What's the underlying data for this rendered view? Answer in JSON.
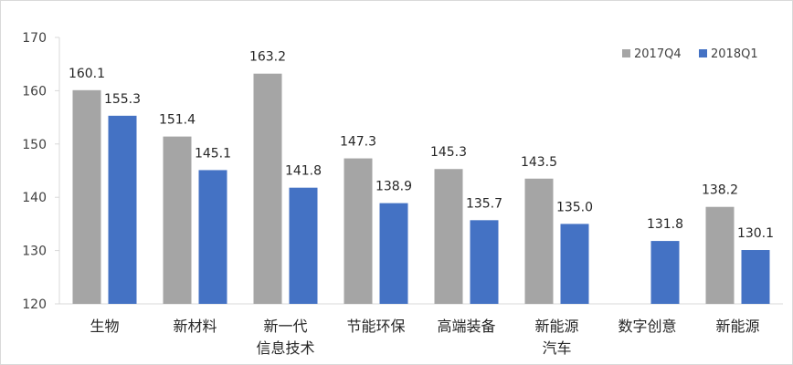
{
  "chart_data": {
    "type": "bar",
    "categories": [
      [
        "生物"
      ],
      [
        "新材料"
      ],
      [
        "新一代",
        "信息技术"
      ],
      [
        "节能环保"
      ],
      [
        "高端装备"
      ],
      [
        "新能源",
        "汽车"
      ],
      [
        "数字创意"
      ],
      [
        "新能源"
      ]
    ],
    "series": [
      {
        "name": "2017Q4",
        "color": "#a5a5a5",
        "values": [
          160.1,
          151.4,
          163.2,
          147.3,
          145.3,
          143.5,
          null,
          138.2
        ],
        "labels": [
          "160.1",
          "151.4",
          "163.2",
          "147.3",
          "145.3",
          "143.5",
          null,
          "138.2"
        ]
      },
      {
        "name": "2018Q1",
        "color": "#4472c4",
        "values": [
          155.3,
          145.1,
          141.8,
          138.9,
          135.7,
          135.0,
          131.8,
          130.1
        ],
        "labels": [
          "155.3",
          "145.1",
          "141.8",
          "138.9",
          "135.7",
          "135.0",
          "131.8",
          "130.1"
        ]
      }
    ],
    "ylim": [
      120,
      170
    ],
    "yticks": [
      120,
      130,
      140,
      150,
      160,
      170
    ],
    "grid": false,
    "legend_position": "top-right",
    "title": "",
    "xlabel": "",
    "ylabel": ""
  }
}
